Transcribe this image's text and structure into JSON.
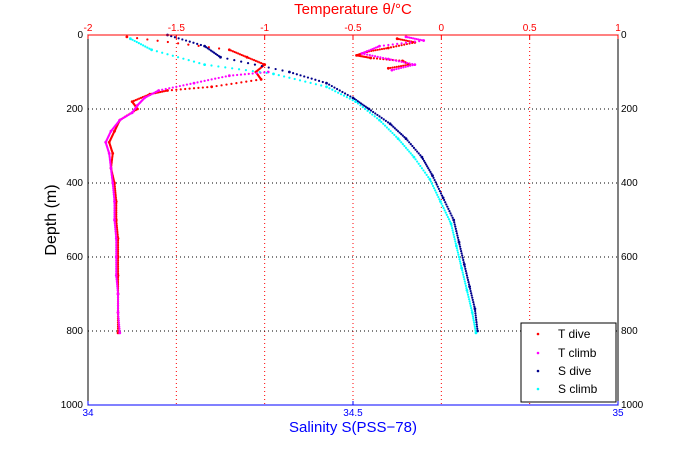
{
  "chart_data": {
    "type": "scatter",
    "title": "Temperature θ/°C",
    "xlabel_bottom": "Salinity S(PSS−78)",
    "xlabel_top": "Temperature θ/°C",
    "ylabel": "Depth (m)",
    "ylim": [
      0,
      1000
    ],
    "y_reversed": true,
    "y_ticks": [
      0,
      200,
      400,
      600,
      800,
      1000
    ],
    "temperature_axis": {
      "range": [
        -2,
        1
      ],
      "ticks": [
        -2,
        -1.5,
        -1,
        -0.5,
        0,
        0.5,
        1
      ]
    },
    "salinity_axis": {
      "range": [
        34,
        35
      ],
      "ticks": [
        34,
        34.5,
        35
      ]
    },
    "grid": true,
    "legend_position": "bottom-right",
    "colors": {
      "T dive": "#ff0000",
      "T climb": "#ff00ff",
      "S dive": "#00008b",
      "S climb": "#00ffff"
    },
    "series": [
      {
        "name": "T dive",
        "axis": "temperature",
        "points": [
          [
            -1.78,
            5
          ],
          [
            -1.2,
            40
          ],
          [
            -1.1,
            60
          ],
          [
            -1.0,
            80
          ],
          [
            -1.05,
            100
          ],
          [
            -1.02,
            120
          ],
          [
            -1.3,
            140
          ],
          [
            -1.55,
            150
          ],
          [
            -1.65,
            160
          ],
          [
            -1.75,
            180
          ],
          [
            -1.72,
            200
          ],
          [
            -1.82,
            230
          ],
          [
            -1.85,
            260
          ],
          [
            -1.88,
            290
          ],
          [
            -1.86,
            320
          ],
          [
            -1.87,
            360
          ],
          [
            -1.85,
            400
          ],
          [
            -1.84,
            450
          ],
          [
            -1.84,
            500
          ],
          [
            -1.83,
            550
          ],
          [
            -1.83,
            600
          ],
          [
            -1.83,
            650
          ],
          [
            -1.83,
            700
          ],
          [
            -1.83,
            750
          ],
          [
            -1.83,
            805
          ],
          [
            -0.25,
            10
          ],
          [
            -0.15,
            20
          ],
          [
            -0.3,
            35
          ],
          [
            -0.42,
            45
          ],
          [
            -0.48,
            55
          ],
          [
            -0.4,
            62
          ],
          [
            -0.22,
            70
          ],
          [
            -0.18,
            80
          ],
          [
            -0.3,
            90
          ]
        ]
      },
      {
        "name": "T climb",
        "axis": "temperature",
        "points": [
          [
            -1.82,
            805
          ],
          [
            -1.83,
            750
          ],
          [
            -1.83,
            700
          ],
          [
            -1.84,
            650
          ],
          [
            -1.84,
            600
          ],
          [
            -1.84,
            550
          ],
          [
            -1.85,
            500
          ],
          [
            -1.85,
            450
          ],
          [
            -1.86,
            400
          ],
          [
            -1.87,
            360
          ],
          [
            -1.88,
            320
          ],
          [
            -1.9,
            290
          ],
          [
            -1.87,
            260
          ],
          [
            -1.82,
            230
          ],
          [
            -1.75,
            210
          ],
          [
            -1.72,
            190
          ],
          [
            -1.68,
            170
          ],
          [
            -1.6,
            150
          ],
          [
            -1.4,
            130
          ],
          [
            -1.2,
            110
          ],
          [
            -0.98,
            100
          ],
          [
            -0.2,
            5
          ],
          [
            -0.1,
            15
          ],
          [
            -0.35,
            30
          ],
          [
            -0.45,
            50
          ],
          [
            -0.3,
            65
          ],
          [
            -0.15,
            80
          ],
          [
            -0.28,
            95
          ]
        ]
      },
      {
        "name": "S dive",
        "axis": "salinity",
        "points": [
          [
            34.15,
            0
          ],
          [
            34.22,
            30
          ],
          [
            34.25,
            60
          ],
          [
            34.38,
            100
          ],
          [
            34.45,
            130
          ],
          [
            34.5,
            170
          ],
          [
            34.53,
            200
          ],
          [
            34.57,
            240
          ],
          [
            34.6,
            280
          ],
          [
            34.63,
            330
          ],
          [
            34.65,
            380
          ],
          [
            34.67,
            440
          ],
          [
            34.69,
            500
          ],
          [
            34.7,
            560
          ],
          [
            34.71,
            620
          ],
          [
            34.72,
            680
          ],
          [
            34.73,
            740
          ],
          [
            34.735,
            800
          ]
        ]
      },
      {
        "name": "S climb",
        "axis": "salinity",
        "points": [
          [
            34.732,
            805
          ],
          [
            34.725,
            750
          ],
          [
            34.715,
            690
          ],
          [
            34.705,
            630
          ],
          [
            34.695,
            570
          ],
          [
            34.685,
            510
          ],
          [
            34.665,
            450
          ],
          [
            34.645,
            390
          ],
          [
            34.615,
            330
          ],
          [
            34.585,
            280
          ],
          [
            34.55,
            230
          ],
          [
            34.505,
            180
          ],
          [
            34.45,
            140
          ],
          [
            34.35,
            105
          ],
          [
            34.22,
            80
          ],
          [
            34.12,
            40
          ],
          [
            34.08,
            10
          ]
        ]
      }
    ]
  }
}
